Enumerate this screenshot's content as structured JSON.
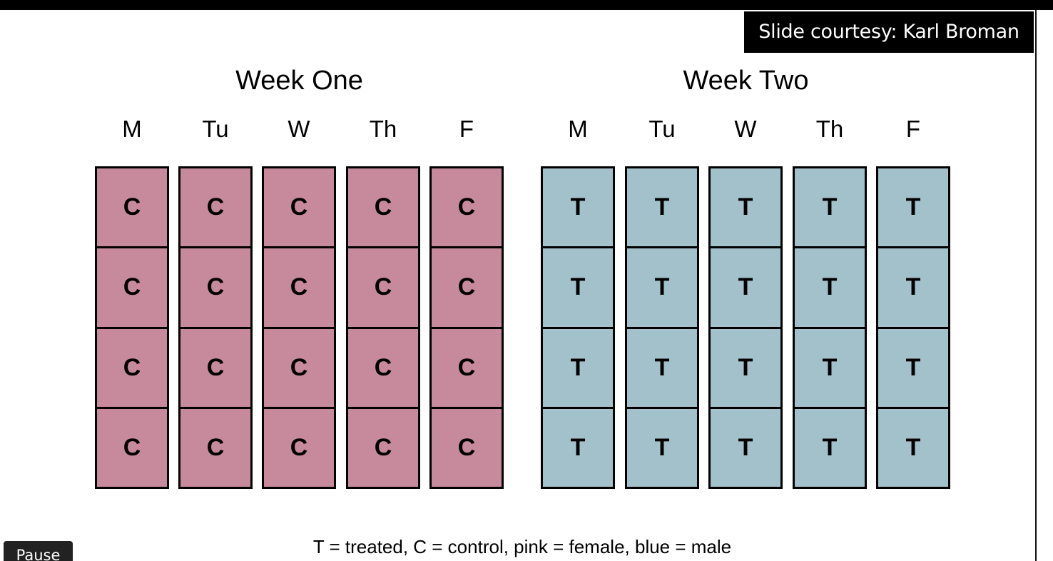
{
  "courtesy_label": "Slide courtesy: Karl Broman",
  "legend": "T = treated, C = control, pink = female, blue = male",
  "controls": {
    "pause_label": "Pause"
  },
  "colors": {
    "control": "#c68a9c",
    "treated": "#a3c1cb"
  },
  "weeks": [
    {
      "title": "Week One",
      "days": [
        {
          "label": "M",
          "cells": [
            "C",
            "C",
            "C",
            "C"
          ]
        },
        {
          "label": "Tu",
          "cells": [
            "C",
            "C",
            "C",
            "C"
          ]
        },
        {
          "label": "W",
          "cells": [
            "C",
            "C",
            "C",
            "C"
          ]
        },
        {
          "label": "Th",
          "cells": [
            "C",
            "C",
            "C",
            "C"
          ]
        },
        {
          "label": "F",
          "cells": [
            "C",
            "C",
            "C",
            "C"
          ]
        }
      ]
    },
    {
      "title": "Week Two",
      "days": [
        {
          "label": "M",
          "cells": [
            "T",
            "T",
            "T",
            "T"
          ]
        },
        {
          "label": "Tu",
          "cells": [
            "T",
            "T",
            "T",
            "T"
          ]
        },
        {
          "label": "W",
          "cells": [
            "T",
            "T",
            "T",
            "T"
          ]
        },
        {
          "label": "Th",
          "cells": [
            "T",
            "T",
            "T",
            "T"
          ]
        },
        {
          "label": "F",
          "cells": [
            "T",
            "T",
            "T",
            "T"
          ]
        }
      ]
    }
  ]
}
